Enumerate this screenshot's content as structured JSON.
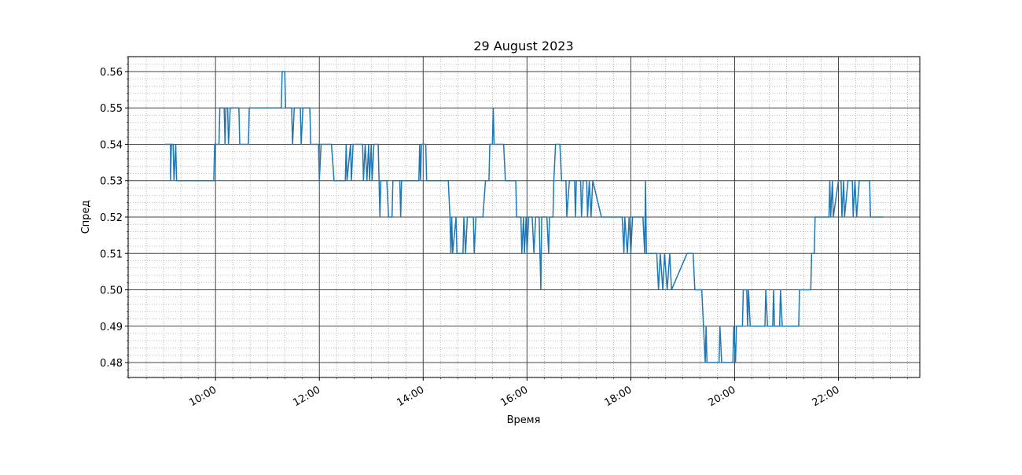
{
  "chart_data": {
    "type": "line",
    "title": "29 August 2023",
    "xlabel": "Время",
    "ylabel": "Спред",
    "x": [
      "09:01",
      "09:08",
      "09:08",
      "09:09",
      "09:11",
      "09:12",
      "09:14",
      "09:15",
      "09:58",
      "09:59",
      "10:04",
      "10:05",
      "10:10",
      "10:11",
      "10:12",
      "10:14",
      "10:15",
      "10:17",
      "10:27",
      "10:28",
      "10:38",
      "10:39",
      "11:16",
      "11:17",
      "11:20",
      "11:21",
      "11:28",
      "11:29",
      "11:31",
      "11:38",
      "11:39",
      "11:41",
      "11:49",
      "11:50",
      "11:59",
      "12:00",
      "12:02",
      "12:14",
      "12:17",
      "12:30",
      "12:31",
      "12:32",
      "12:36",
      "12:37",
      "12:39",
      "12:50",
      "12:51",
      "12:53",
      "12:55",
      "12:57",
      "12:58",
      "13:00",
      "13:01",
      "13:03",
      "13:08",
      "13:09",
      "13:10",
      "13:11",
      "13:18",
      "13:20",
      "13:24",
      "13:25",
      "13:33",
      "13:34",
      "13:35",
      "13:55",
      "13:56",
      "13:57",
      "13:58",
      "14:03",
      "14:04",
      "14:29",
      "14:31",
      "14:32",
      "14:33",
      "14:34",
      "14:38",
      "14:39",
      "14:46",
      "14:47",
      "14:49",
      "14:51",
      "14:58",
      "14:59",
      "15:01",
      "15:09",
      "15:12",
      "15:16",
      "15:17",
      "15:20",
      "15:21",
      "15:22",
      "15:33",
      "15:35",
      "15:47",
      "15:48",
      "15:53",
      "15:54",
      "15:56",
      "15:57",
      "15:59",
      "16:00",
      "16:02",
      "16:06",
      "16:08",
      "16:10",
      "16:14",
      "16:16",
      "16:17",
      "16:23",
      "16:25",
      "16:26",
      "16:30",
      "16:31",
      "16:33",
      "16:38",
      "16:40",
      "16:45",
      "16:46",
      "16:49",
      "16:55",
      "16:56",
      "16:57",
      "17:02",
      "17:03",
      "17:05",
      "17:09",
      "17:10",
      "17:12",
      "17:14",
      "17:16",
      "17:26",
      "17:50",
      "17:52",
      "17:53",
      "17:56",
      "17:58",
      "18:00",
      "18:02",
      "18:14",
      "18:16",
      "18:17",
      "18:18",
      "18:30",
      "18:32",
      "18:34",
      "18:37",
      "18:39",
      "18:42",
      "18:45",
      "18:47",
      "19:05",
      "19:12",
      "19:14",
      "19:22",
      "19:24",
      "19:26",
      "19:27",
      "19:28",
      "19:42",
      "19:43",
      "19:45",
      "19:58",
      "19:59",
      "20:01",
      "20:02",
      "20:09",
      "20:10",
      "20:14",
      "20:15",
      "20:16",
      "20:18",
      "20:35",
      "20:36",
      "20:38",
      "20:44",
      "20:45",
      "20:46",
      "20:52",
      "20:53",
      "20:55",
      "21:14",
      "21:15",
      "21:28",
      "21:29",
      "21:32",
      "21:33",
      "21:49",
      "21:50",
      "21:51",
      "21:53",
      "21:54",
      "22:00",
      "22:03",
      "22:04",
      "22:06",
      "22:07",
      "22:11",
      "22:16",
      "22:17",
      "22:19",
      "22:21",
      "22:24",
      "22:36",
      "22:37",
      "22:52"
    ],
    "series": [
      {
        "color": "#1f77b4",
        "values": [
          0.54,
          0.54,
          0.53,
          0.54,
          0.54,
          0.53,
          0.54,
          0.53,
          0.53,
          0.54,
          0.54,
          0.55,
          0.55,
          0.54,
          0.55,
          0.55,
          0.54,
          0.55,
          0.55,
          0.54,
          0.54,
          0.55,
          0.55,
          0.56,
          0.56,
          0.55,
          0.55,
          0.54,
          0.55,
          0.55,
          0.54,
          0.55,
          0.55,
          0.54,
          0.54,
          0.53,
          0.54,
          0.54,
          0.53,
          0.53,
          0.54,
          0.53,
          0.54,
          0.53,
          0.54,
          0.54,
          0.53,
          0.54,
          0.53,
          0.54,
          0.53,
          0.54,
          0.53,
          0.54,
          0.54,
          0.53,
          0.52,
          0.53,
          0.53,
          0.52,
          0.52,
          0.53,
          0.53,
          0.52,
          0.53,
          0.53,
          0.54,
          0.53,
          0.54,
          0.54,
          0.53,
          0.53,
          0.52,
          0.51,
          0.52,
          0.51,
          0.52,
          0.51,
          0.51,
          0.52,
          0.51,
          0.52,
          0.52,
          0.51,
          0.52,
          0.52,
          0.53,
          0.53,
          0.54,
          0.54,
          0.55,
          0.54,
          0.54,
          0.53,
          0.53,
          0.52,
          0.52,
          0.51,
          0.52,
          0.51,
          0.52,
          0.51,
          0.52,
          0.52,
          0.51,
          0.52,
          0.52,
          0.5,
          0.52,
          0.52,
          0.51,
          0.52,
          0.52,
          0.53,
          0.54,
          0.54,
          0.53,
          0.53,
          0.52,
          0.53,
          0.53,
          0.52,
          0.53,
          0.53,
          0.52,
          0.53,
          0.53,
          0.52,
          0.53,
          0.52,
          0.53,
          0.52,
          0.52,
          0.51,
          0.52,
          0.51,
          0.52,
          0.51,
          0.52,
          0.52,
          0.51,
          0.53,
          0.51,
          0.51,
          0.5,
          0.51,
          0.5,
          0.51,
          0.5,
          0.51,
          0.5,
          0.51,
          0.51,
          0.5,
          0.5,
          0.49,
          0.48,
          0.49,
          0.48,
          0.48,
          0.49,
          0.48,
          0.48,
          0.49,
          0.48,
          0.49,
          0.49,
          0.5,
          0.5,
          0.49,
          0.5,
          0.49,
          0.49,
          0.5,
          0.49,
          0.49,
          0.5,
          0.49,
          0.49,
          0.5,
          0.49,
          0.49,
          0.5,
          0.5,
          0.51,
          0.51,
          0.52,
          0.52,
          0.53,
          0.52,
          0.53,
          0.52,
          0.53,
          0.53,
          0.52,
          0.53,
          0.52,
          0.53,
          0.53,
          0.52,
          0.53,
          0.52,
          0.53,
          0.53,
          0.52,
          0.52
        ]
      }
    ],
    "xlim": [
      "08:19",
      "23:34"
    ],
    "xticks": [
      "10:00",
      "12:00",
      "14:00",
      "16:00",
      "18:00",
      "20:00",
      "22:00"
    ],
    "xminorticks": [
      "08:20",
      "08:40",
      "09:00",
      "09:20",
      "09:40",
      "10:20",
      "10:40",
      "11:00",
      "11:20",
      "11:40",
      "12:20",
      "12:40",
      "13:00",
      "13:20",
      "13:40",
      "14:20",
      "14:40",
      "15:00",
      "15:20",
      "15:40",
      "16:20",
      "16:40",
      "17:00",
      "17:20",
      "17:40",
      "18:20",
      "18:40",
      "19:00",
      "19:20",
      "19:40",
      "20:20",
      "20:40",
      "21:00",
      "21:20",
      "21:40",
      "22:20",
      "22:40",
      "23:00",
      "23:20"
    ],
    "ylim": [
      0.4759,
      0.5641
    ],
    "yticks": [
      0.48,
      0.49,
      {
        "value": 0.5,
        "label": "0.50"
      },
      0.51,
      0.52,
      0.53,
      0.54,
      0.55,
      0.56
    ],
    "yminorticks": [
      0.476,
      0.478,
      0.482,
      0.484,
      0.486,
      0.488,
      0.492,
      0.494,
      0.496,
      0.498,
      0.502,
      0.504,
      0.506,
      0.508,
      0.512,
      0.514,
      0.516,
      0.518,
      0.522,
      0.524,
      0.526,
      0.528,
      0.532,
      0.534,
      0.536,
      0.538,
      0.542,
      0.544,
      0.546,
      0.548,
      0.552,
      0.554,
      0.556,
      0.558,
      0.562,
      0.564
    ],
    "grid": true
  }
}
